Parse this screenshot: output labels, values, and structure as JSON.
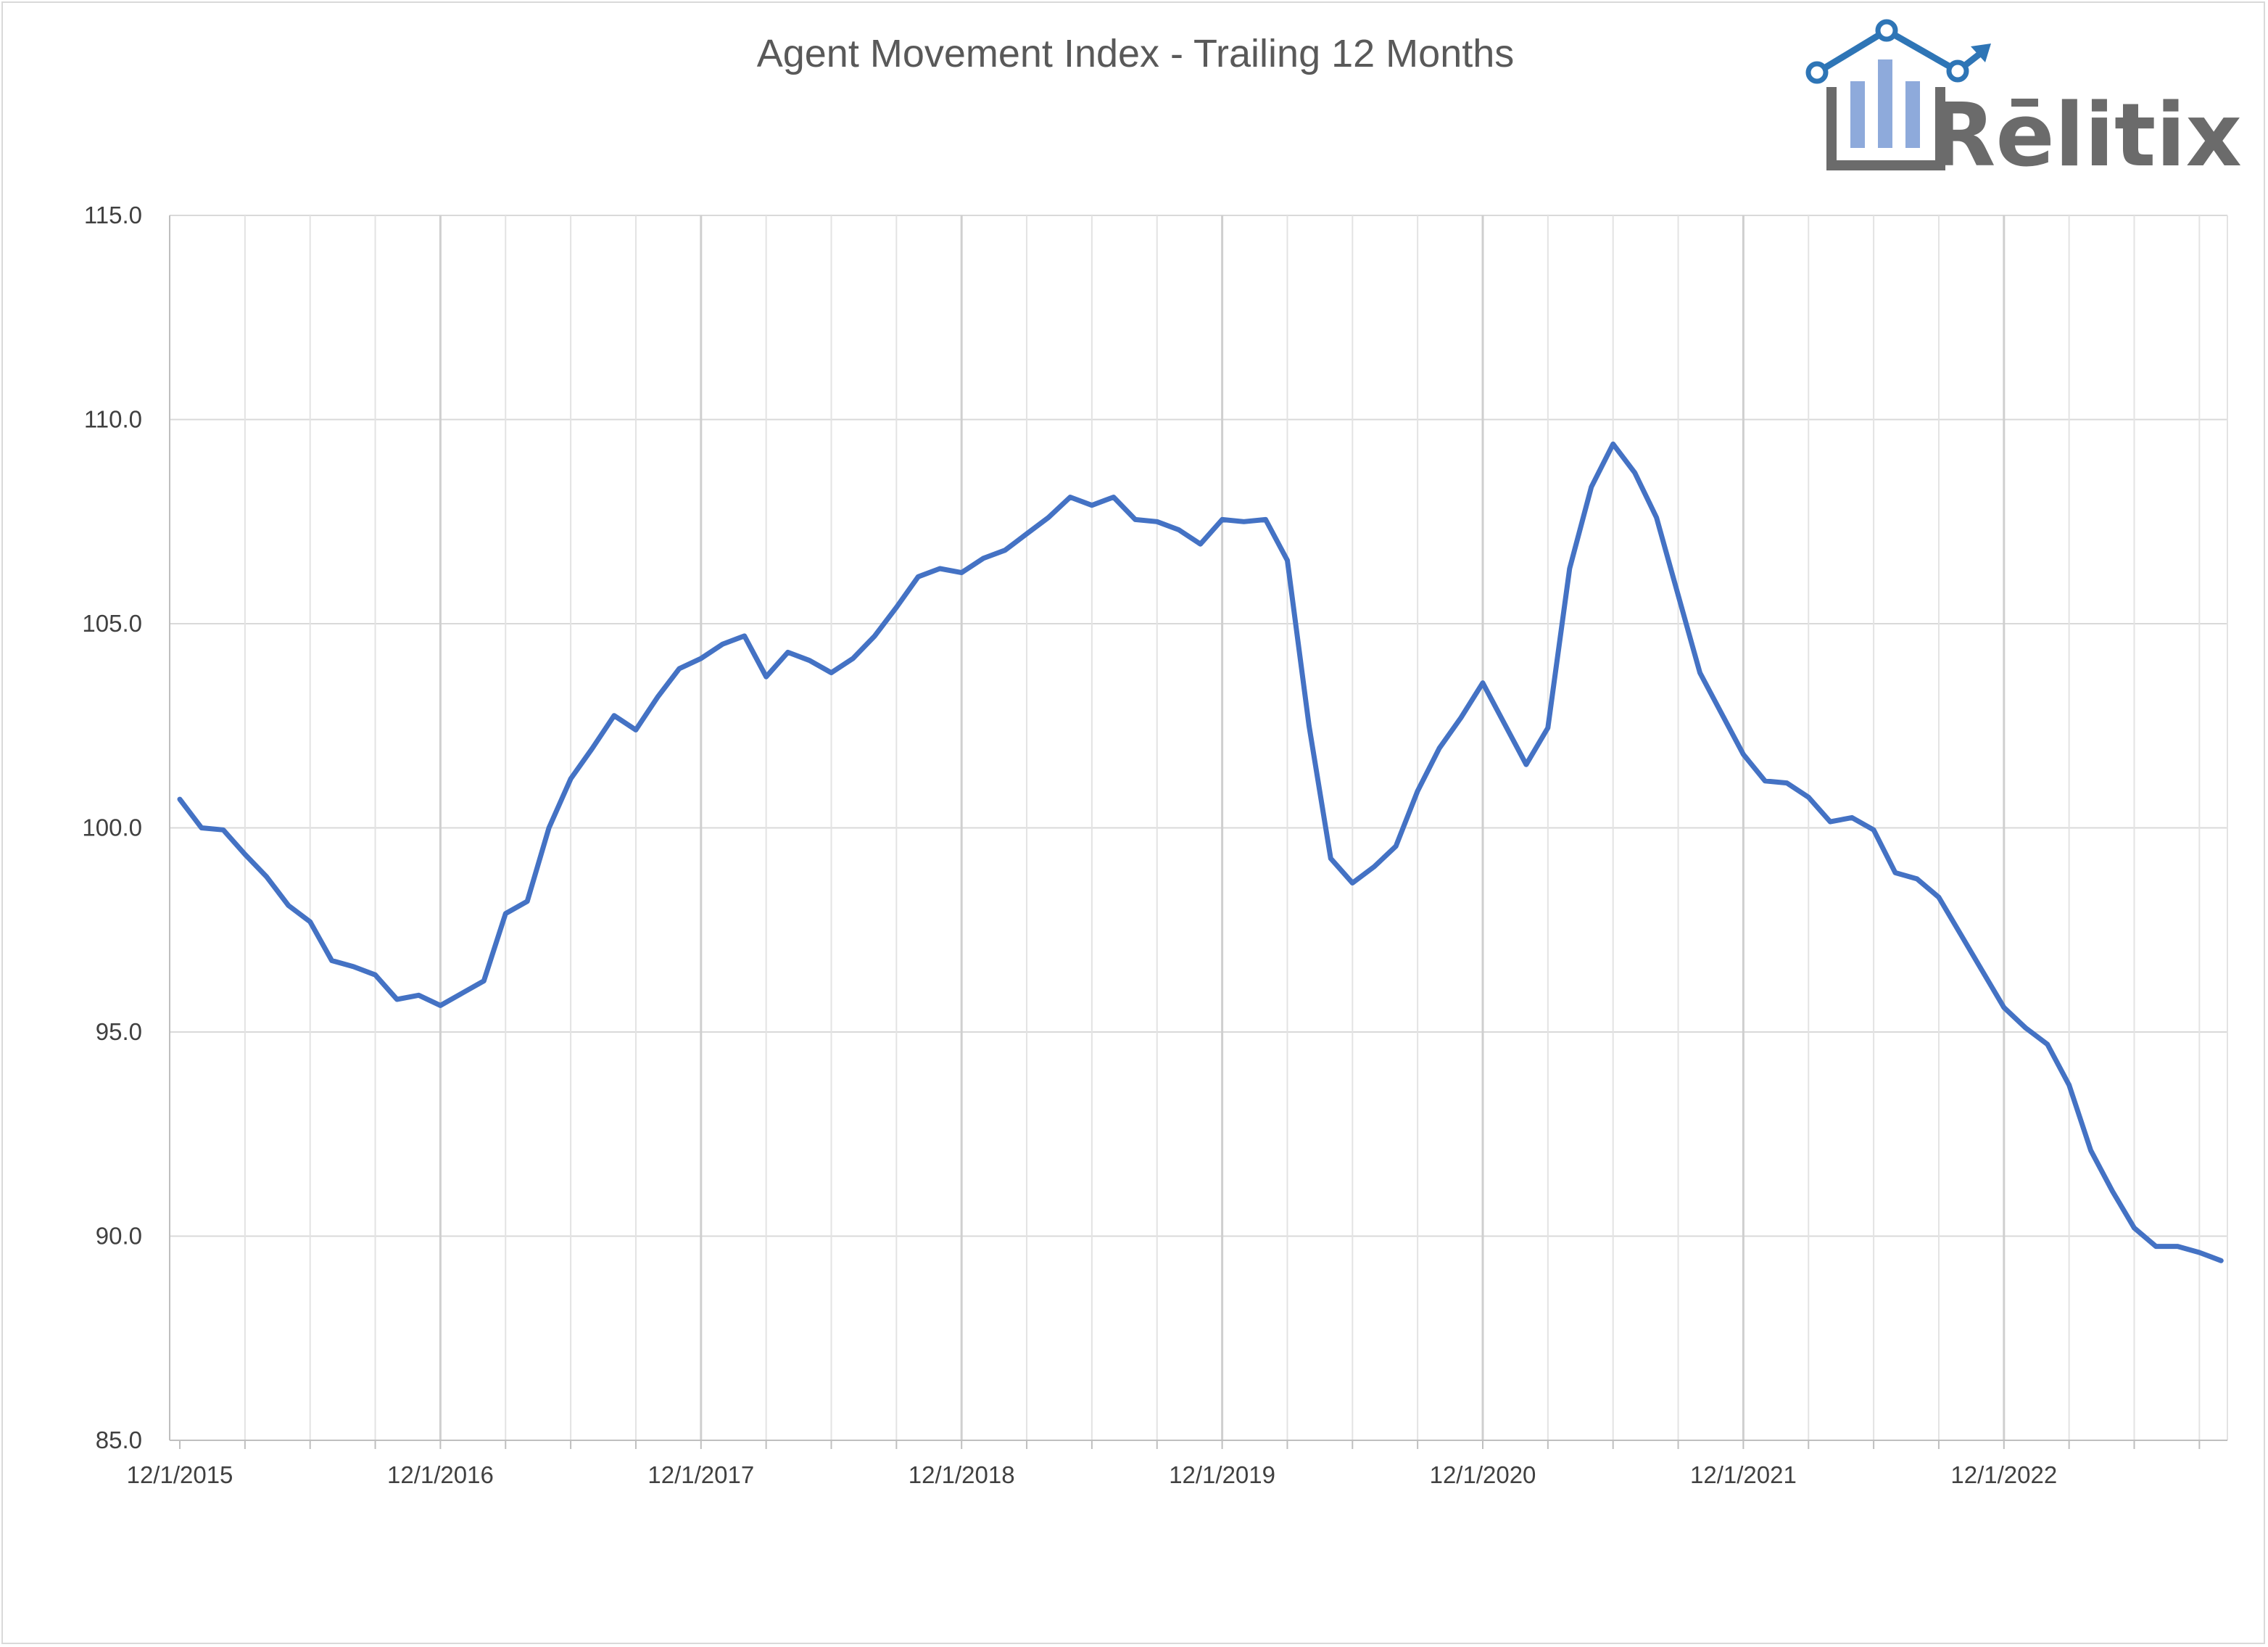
{
  "logo": {
    "text": "Rēlitix",
    "colors": {
      "frame": "#6b6b6b",
      "bars": "#8eaadb",
      "accent": "#2e75b6"
    }
  },
  "chart_data": {
    "type": "line",
    "title": "Agent Movement Index - Trailing 12 Months",
    "xlabel": "",
    "ylabel": "",
    "ylim": [
      85,
      115
    ],
    "yticks": [
      85,
      90,
      95,
      100,
      105,
      110,
      115
    ],
    "ytick_labels": [
      "85.0",
      "90.0",
      "95.0",
      "100.0",
      "105.0",
      "110.0",
      "115.0"
    ],
    "xtick_labels": [
      "12/1/2015",
      "12/1/2016",
      "12/1/2017",
      "12/1/2018",
      "12/1/2019",
      "12/1/2020",
      "12/1/2021",
      "12/1/2022"
    ],
    "x_start": "12/1/2015",
    "x_end": "9/1/2023",
    "grid": true,
    "legend": "none",
    "line_color": "#4472c4",
    "series": [
      {
        "values": [
          100.7,
          100.0,
          99.95,
          99.35,
          98.8,
          98.1,
          97.7,
          96.75,
          96.6,
          96.4,
          95.8,
          95.9,
          95.65,
          95.95,
          96.25,
          97.9,
          98.2,
          100.0,
          101.2,
          101.95,
          102.75,
          102.4,
          103.2,
          103.9,
          104.15,
          104.5,
          104.7,
          103.7,
          104.3,
          104.1,
          103.8,
          104.15,
          104.7,
          105.4,
          106.15,
          106.35,
          106.25,
          106.6,
          106.8,
          107.2,
          107.6,
          108.1,
          107.9,
          108.1,
          107.55,
          107.5,
          107.3,
          106.95,
          107.55,
          107.5,
          107.55,
          106.55,
          102.5,
          99.25,
          98.65,
          99.05,
          99.55,
          100.9,
          101.95,
          102.7,
          103.55,
          102.55,
          101.55,
          102.45,
          106.35,
          108.35,
          109.4,
          108.7,
          107.6,
          105.7,
          103.8,
          102.8,
          101.8,
          101.15,
          101.1,
          100.75,
          100.15,
          100.25,
          99.95,
          98.9,
          98.75,
          98.3,
          97.4,
          96.5,
          95.6,
          95.1,
          94.7,
          93.7,
          92.1,
          91.1,
          90.2,
          89.75,
          89.75,
          89.6,
          89.4
        ]
      }
    ]
  }
}
